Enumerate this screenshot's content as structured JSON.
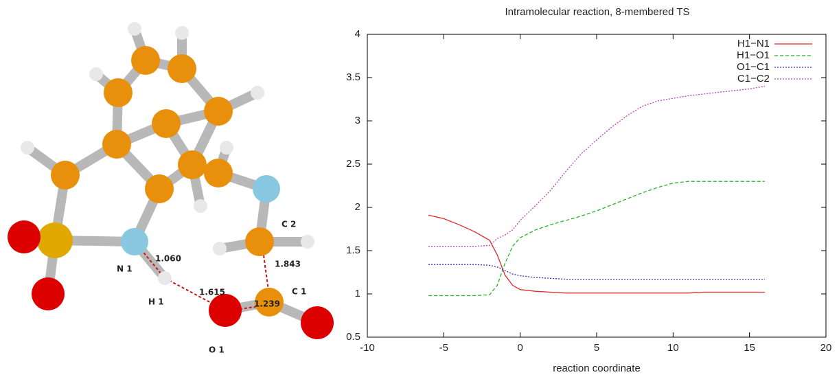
{
  "molecule": {
    "atom_labels": [
      "N 1",
      "H 1",
      "O 1",
      "C 1",
      "C 2"
    ],
    "bond_lengths": [
      "1.060",
      "1.615",
      "1.239",
      "1.843"
    ]
  },
  "chart_data": {
    "type": "line",
    "title": "Intramolecular reaction, 8-membered TS",
    "x_label": "reaction coordinate",
    "x": [
      -6,
      -5,
      -4,
      -3,
      -2,
      -1.5,
      -1,
      -0.5,
      0,
      1,
      2,
      3,
      4,
      5,
      6,
      7,
      8,
      9,
      10,
      11,
      12,
      13,
      14,
      15,
      16
    ],
    "series": [
      {
        "name": "H1−N1",
        "color": "#e02828",
        "style": "solid",
        "values": [
          1.91,
          1.87,
          1.8,
          1.72,
          1.62,
          1.45,
          1.22,
          1.1,
          1.05,
          1.03,
          1.02,
          1.01,
          1.01,
          1.01,
          1.01,
          1.01,
          1.01,
          1.01,
          1.01,
          1.01,
          1.02,
          1.02,
          1.02,
          1.02,
          1.02
        ]
      },
      {
        "name": "H1−O1",
        "color": "#22b422",
        "style": "dashed",
        "values": [
          0.98,
          0.98,
          0.98,
          0.98,
          0.99,
          1.1,
          1.35,
          1.55,
          1.65,
          1.74,
          1.8,
          1.85,
          1.9,
          1.96,
          2.03,
          2.1,
          2.17,
          2.23,
          2.28,
          2.3,
          2.3,
          2.3,
          2.3,
          2.3,
          2.3
        ]
      },
      {
        "name": "O1−C1",
        "color": "#3030c0",
        "style": "dotted",
        "values": [
          1.34,
          1.34,
          1.34,
          1.34,
          1.33,
          1.31,
          1.27,
          1.23,
          1.21,
          1.19,
          1.18,
          1.17,
          1.17,
          1.17,
          1.17,
          1.17,
          1.17,
          1.17,
          1.17,
          1.17,
          1.17,
          1.17,
          1.17,
          1.17,
          1.17
        ]
      },
      {
        "name": "C1−C2",
        "color": "#c040c0",
        "style": "dotted",
        "values": [
          1.55,
          1.55,
          1.55,
          1.55,
          1.56,
          1.64,
          1.68,
          1.74,
          1.85,
          2.02,
          2.2,
          2.42,
          2.62,
          2.78,
          2.93,
          3.06,
          3.17,
          3.23,
          3.26,
          3.29,
          3.31,
          3.33,
          3.35,
          3.37,
          3.4
        ]
      }
    ],
    "xlim": [
      -10,
      20
    ],
    "xticks": [
      -10,
      -5,
      0,
      5,
      10,
      15,
      20
    ],
    "ylim": [
      0.5,
      4
    ],
    "yticks": [
      0.5,
      1,
      1.5,
      2,
      2.5,
      3,
      3.5,
      4
    ],
    "legend": "upper right"
  }
}
